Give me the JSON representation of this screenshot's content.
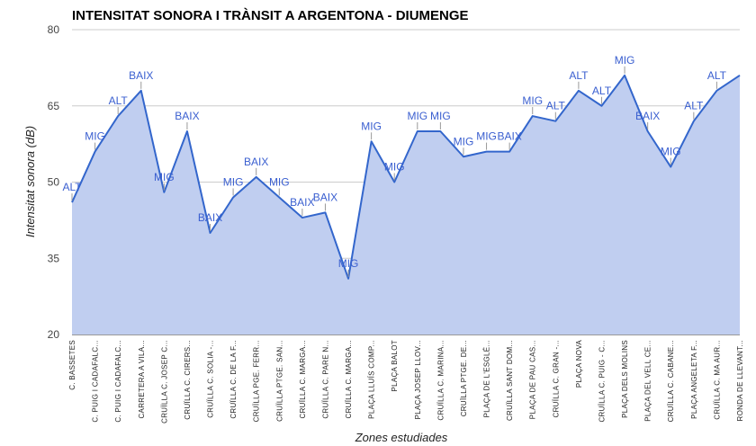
{
  "chart_data": {
    "type": "area",
    "title": "INTENSITAT SONORA I TRÀNSIT A ARGENTONA - DIUMENGE",
    "xlabel": "Zones estudiades",
    "ylabel": "Intensitat sonora (dB)",
    "ylim": [
      20,
      80
    ],
    "yticks": [
      20,
      35,
      50,
      65,
      80
    ],
    "grid": true,
    "colors": {
      "line": "#3366cc",
      "fill": "#c0cef0",
      "label": "#3a5fd0",
      "grid": "#cccccc"
    },
    "categories": [
      "C. BASSETES",
      "C. PUIG I CADAFALC...",
      "C. PUIG I CADAFALC...",
      "CARRETERA A VILA...",
      "CRUÏLLA C. JOSEP C...",
      "CRUÏLLA C. CIRERS...",
      "CRUÏLLA C. SOLIA -...",
      "CRUÏLLA C. DE LA F...",
      "CRUÏLLA PGE. FERR...",
      "CRUÏLLA PTGE. SAN...",
      "CRUÏLLA C. MARGA...",
      "CRUÏLLA C. PARE N...",
      "CRUÏLLA C. MARGA...",
      "PLAÇA LLUÍS COMP...",
      "PLAÇA BALOT",
      "PLAÇA JOSEP LLOV...",
      "CRUÏLLA C. MARINA...",
      "CRUÏLLA PTGE. DE...",
      "PLAÇA DE L'ESGLÉ...",
      "CRUÏLLA SANT DOM...",
      "PLAÇA DE PAU CAS...",
      "CRUÏLLA C. GRAN -...",
      "PLAÇA NOVA",
      "CRUÏLLA C. PUIG - C...",
      "PLAÇA DELS MOLINS",
      "PLAÇA DEL VELL CE...",
      "CRUÏLLA C. CABANE...",
      "PLAÇA ANGELETA F...",
      "CRUÏLLA C. MA AUR...",
      "RONDA DE LLEVANT..."
    ],
    "values": [
      46,
      56,
      63,
      68,
      48,
      60,
      40,
      47,
      51,
      47,
      43,
      44,
      31,
      58,
      50,
      60,
      60,
      55,
      56,
      56,
      63,
      62,
      68,
      65,
      71,
      60,
      53,
      62,
      68,
      71
    ],
    "point_labels": [
      "ALT",
      "MIG",
      "ALT",
      "BAIX",
      "MIG",
      "BAIX",
      "BAIX",
      "MIG",
      "BAIX",
      "MIG",
      "BAIX",
      "BAIX",
      "MIG",
      "MIG",
      "MIG",
      "MIG",
      "MIG",
      "MIG",
      "MIG",
      "BAIX",
      "MIG",
      "ALT",
      "ALT",
      "ALT",
      "MIG",
      "BAIX",
      "MIG",
      "ALT",
      "ALT",
      ""
    ]
  }
}
